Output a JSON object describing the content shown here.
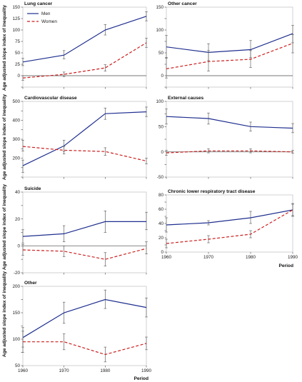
{
  "figure": {
    "ylabel": "Age adjusted slope index of inequality",
    "xlabel": "Period"
  },
  "legend": [
    {
      "name": "Men",
      "color": "#1f2f8f",
      "dash": "solid"
    },
    {
      "name": "Women",
      "color": "#cc1f1f",
      "dash": "dashed"
    }
  ],
  "chart_data": [
    {
      "type": "line",
      "title": "Lung cancer",
      "x": [
        1960,
        1970,
        1980,
        1990
      ],
      "xlim": [
        1960,
        1990
      ],
      "ylim": [
        -25,
        150
      ],
      "yticks": [
        -25,
        0,
        25,
        50,
        75,
        100,
        125,
        150
      ],
      "ytick_labels": [
        "",
        "0",
        "25",
        "50",
        "75",
        "100",
        "125",
        "150"
      ],
      "legend": "top-left",
      "series": [
        {
          "name": "Men",
          "values": [
            30,
            45,
            100,
            130
          ],
          "lower": [
            22,
            37,
            89,
            120
          ],
          "upper": [
            38,
            55,
            112,
            140
          ]
        },
        {
          "name": "Women",
          "values": [
            -5,
            3,
            17,
            72
          ],
          "lower": [
            -10,
            -2,
            10,
            62
          ],
          "upper": [
            0,
            8,
            24,
            82
          ]
        }
      ]
    },
    {
      "type": "line",
      "title": "Other cancer",
      "x": [
        1960,
        1970,
        1980,
        1990
      ],
      "xlim": [
        1960,
        1990
      ],
      "ylim": [
        -25,
        150
      ],
      "yticks": [
        -25,
        0,
        25,
        50,
        75,
        100,
        125,
        150
      ],
      "ytick_labels": [
        "",
        "0",
        "",
        "50",
        "",
        "100",
        "",
        "150"
      ],
      "series": [
        {
          "name": "Men",
          "values": [
            63,
            51,
            57,
            92
          ],
          "lower": [
            38,
            33,
            40,
            72
          ],
          "upper": [
            88,
            70,
            77,
            110
          ]
        },
        {
          "name": "Women",
          "values": [
            15,
            31,
            36,
            71
          ],
          "lower": [
            -5,
            10,
            18,
            50
          ],
          "upper": [
            40,
            55,
            55,
            90
          ]
        }
      ]
    },
    {
      "type": "line",
      "title": "Cardiovascular disease",
      "x": [
        1960,
        1970,
        1980,
        1990
      ],
      "xlim": [
        1960,
        1990
      ],
      "ylim": [
        100,
        500
      ],
      "yticks": [
        100,
        150,
        200,
        250,
        300,
        350,
        400,
        450,
        500
      ],
      "ytick_labels": [
        "",
        "",
        "200",
        "",
        "300",
        "",
        "400",
        "",
        "500"
      ],
      "series": [
        {
          "name": "Men",
          "values": [
            160,
            265,
            435,
            445
          ],
          "lower": [
            125,
            235,
            405,
            420
          ],
          "upper": [
            190,
            295,
            465,
            470
          ]
        },
        {
          "name": "Women",
          "values": [
            262,
            242,
            235,
            185
          ],
          "lower": [
            238,
            222,
            215,
            170
          ],
          "upper": [
            295,
            262,
            255,
            200
          ]
        }
      ]
    },
    {
      "type": "line",
      "title": "External causes",
      "x": [
        1960,
        1970,
        1980,
        1990
      ],
      "xlim": [
        1960,
        1990
      ],
      "ylim": [
        -50,
        100
      ],
      "yticks": [
        -50,
        -25,
        0,
        25,
        50,
        75,
        100
      ],
      "ytick_labels": [
        "-50",
        "",
        "0",
        "",
        "50",
        "",
        "100"
      ],
      "series": [
        {
          "name": "Men",
          "values": [
            70,
            66,
            50,
            47
          ],
          "lower": [
            55,
            55,
            41,
            38
          ],
          "upper": [
            85,
            77,
            59,
            56
          ]
        },
        {
          "name": "Women",
          "values": [
            -2,
            2,
            2,
            0
          ],
          "lower": [
            -7,
            -2,
            -2,
            -3
          ],
          "upper": [
            3,
            6,
            6,
            3
          ]
        }
      ]
    },
    {
      "type": "line",
      "title": "Suicide",
      "x": [
        1960,
        1970,
        1980,
        1990
      ],
      "xlim": [
        1960,
        1990
      ],
      "ylim": [
        -20,
        40
      ],
      "yticks": [
        -20,
        -10,
        0,
        10,
        20,
        30,
        40
      ],
      "ytick_labels": [
        "-20",
        "",
        "0",
        "",
        "20",
        "",
        "40"
      ],
      "series": [
        {
          "name": "Men",
          "values": [
            7,
            9,
            18,
            18
          ],
          "lower": [
            2,
            3,
            10,
            12
          ],
          "upper": [
            12,
            15,
            26,
            25
          ]
        },
        {
          "name": "Women",
          "values": [
            -3,
            -4,
            -10,
            -2
          ],
          "lower": [
            -7,
            -8,
            -15,
            -6
          ],
          "upper": [
            1,
            0,
            -5,
            3
          ]
        }
      ]
    },
    {
      "type": "line",
      "title": "Chronic lower respiratory tract disease",
      "x": [
        1960,
        1970,
        1980,
        1990
      ],
      "xlim": [
        1960,
        1990
      ],
      "ylim": [
        0,
        80
      ],
      "yticks": [
        0,
        10,
        20,
        30,
        40,
        50,
        60,
        70,
        80
      ],
      "ytick_labels": [
        "0",
        "",
        "20",
        "",
        "40",
        "",
        "60",
        "",
        "80"
      ],
      "series": [
        {
          "name": "Men",
          "values": [
            38,
            41,
            48,
            59
          ],
          "lower": [
            28,
            38,
            40,
            50
          ],
          "upper": [
            48,
            44,
            57,
            68
          ]
        },
        {
          "name": "Women",
          "values": [
            12,
            18,
            25,
            59
          ],
          "lower": [
            6,
            13,
            20,
            51
          ],
          "upper": [
            18,
            23,
            30,
            67
          ]
        }
      ]
    },
    {
      "type": "line",
      "title": "Other",
      "x": [
        1960,
        1970,
        1980,
        1990
      ],
      "xlim": [
        1960,
        1990
      ],
      "ylim": [
        50,
        200
      ],
      "yticks": [
        50,
        75,
        100,
        125,
        150,
        175,
        200
      ],
      "ytick_labels": [
        "50",
        "",
        "100",
        "",
        "150",
        "",
        "200"
      ],
      "series": [
        {
          "name": "Men",
          "values": [
            103,
            150,
            175,
            160
          ],
          "lower": [
            85,
            130,
            158,
            142
          ],
          "upper": [
            122,
            170,
            193,
            178
          ]
        },
        {
          "name": "Women",
          "values": [
            95,
            95,
            71,
            92
          ],
          "lower": [
            75,
            80,
            57,
            80
          ],
          "upper": [
            115,
            110,
            85,
            104
          ]
        }
      ]
    }
  ]
}
